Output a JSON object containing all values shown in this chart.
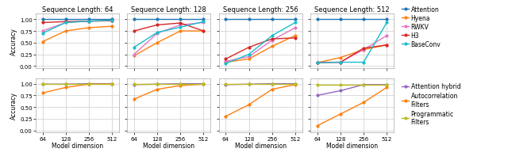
{
  "seq_lengths": [
    64,
    128,
    256,
    512
  ],
  "model_dims": [
    64,
    128,
    256,
    512
  ],
  "top_series": {
    "Attention": {
      "color": "#1f77b4",
      "data": {
        "64": [
          1.0,
          1.0,
          1.0,
          1.0
        ],
        "128": [
          1.0,
          1.0,
          1.0,
          1.0
        ],
        "256": [
          1.0,
          1.0,
          1.0,
          1.0
        ],
        "512": [
          1.0,
          1.0,
          1.0,
          1.0
        ]
      }
    },
    "Hyena": {
      "color": "#ff7f0e",
      "data": {
        "64": [
          0.52,
          0.75,
          0.82,
          0.85
        ],
        "128": [
          0.22,
          0.5,
          0.75,
          0.75
        ],
        "256": [
          0.08,
          0.15,
          0.42,
          0.65
        ],
        "512": [
          0.07,
          0.18,
          0.35,
          0.45
        ]
      }
    },
    "RWKV": {
      "color": "#e377c2",
      "data": {
        "64": [
          0.75,
          0.93,
          0.96,
          0.97
        ],
        "128": [
          0.25,
          0.7,
          0.88,
          0.93
        ],
        "256": [
          0.1,
          0.2,
          0.55,
          0.82
        ],
        "512": [
          0.08,
          0.08,
          0.35,
          0.65
        ]
      }
    },
    "H3": {
      "color": "#d62728",
      "data": {
        "64": [
          0.93,
          0.95,
          0.96,
          0.97
        ],
        "128": [
          0.75,
          0.88,
          0.92,
          0.75
        ],
        "256": [
          0.15,
          0.4,
          0.58,
          0.6
        ],
        "512": [
          0.07,
          0.08,
          0.38,
          0.45
        ]
      }
    },
    "BaseConv": {
      "color": "#17becf",
      "data": {
        "64": [
          0.7,
          0.93,
          0.96,
          0.98
        ],
        "128": [
          0.4,
          0.72,
          0.83,
          0.95
        ],
        "256": [
          0.05,
          0.25,
          0.65,
          0.93
        ],
        "512": [
          0.07,
          0.08,
          0.08,
          0.93
        ]
      }
    }
  },
  "bottom_series": {
    "Attention hybrid": {
      "color": "#9467bd",
      "data": {
        "64": [
          0.99,
          0.99,
          1.0,
          1.0
        ],
        "128": [
          0.98,
          0.99,
          1.0,
          1.0
        ],
        "256": [
          0.98,
          0.99,
          1.0,
          1.0
        ],
        "512": [
          0.75,
          0.85,
          0.98,
          0.98
        ]
      }
    },
    "Autocorrelation\nFilters": {
      "color": "#ff7f0e",
      "data": {
        "64": [
          0.8,
          0.92,
          0.99,
          0.99
        ],
        "128": [
          0.67,
          0.88,
          0.96,
          0.99
        ],
        "256": [
          0.3,
          0.55,
          0.88,
          0.98
        ],
        "512": [
          0.1,
          0.35,
          0.6,
          0.92
        ]
      }
    },
    "Programmatic\nFilters": {
      "color": "#bcbd22",
      "data": {
        "64": [
          0.99,
          0.99,
          0.99,
          0.99
        ],
        "128": [
          0.99,
          0.99,
          0.99,
          0.99
        ],
        "256": [
          0.99,
          0.99,
          0.99,
          0.99
        ],
        "512": [
          0.98,
          0.98,
          0.98,
          0.98
        ]
      }
    }
  },
  "top_legend_labels": [
    "Attention",
    "Hyena",
    "RWKV",
    "H3",
    "BaseConv"
  ],
  "bottom_legend_labels": [
    "Attention hybrid",
    "Autocorrelation\nFilters",
    "Programmatic\nFilters"
  ],
  "xlabel": "Model dimension",
  "ylabel": "Accuracy",
  "yticks": [
    0.0,
    0.25,
    0.5,
    0.75,
    1.0
  ],
  "background_color": "#ffffff",
  "grid_color": "#cccccc"
}
